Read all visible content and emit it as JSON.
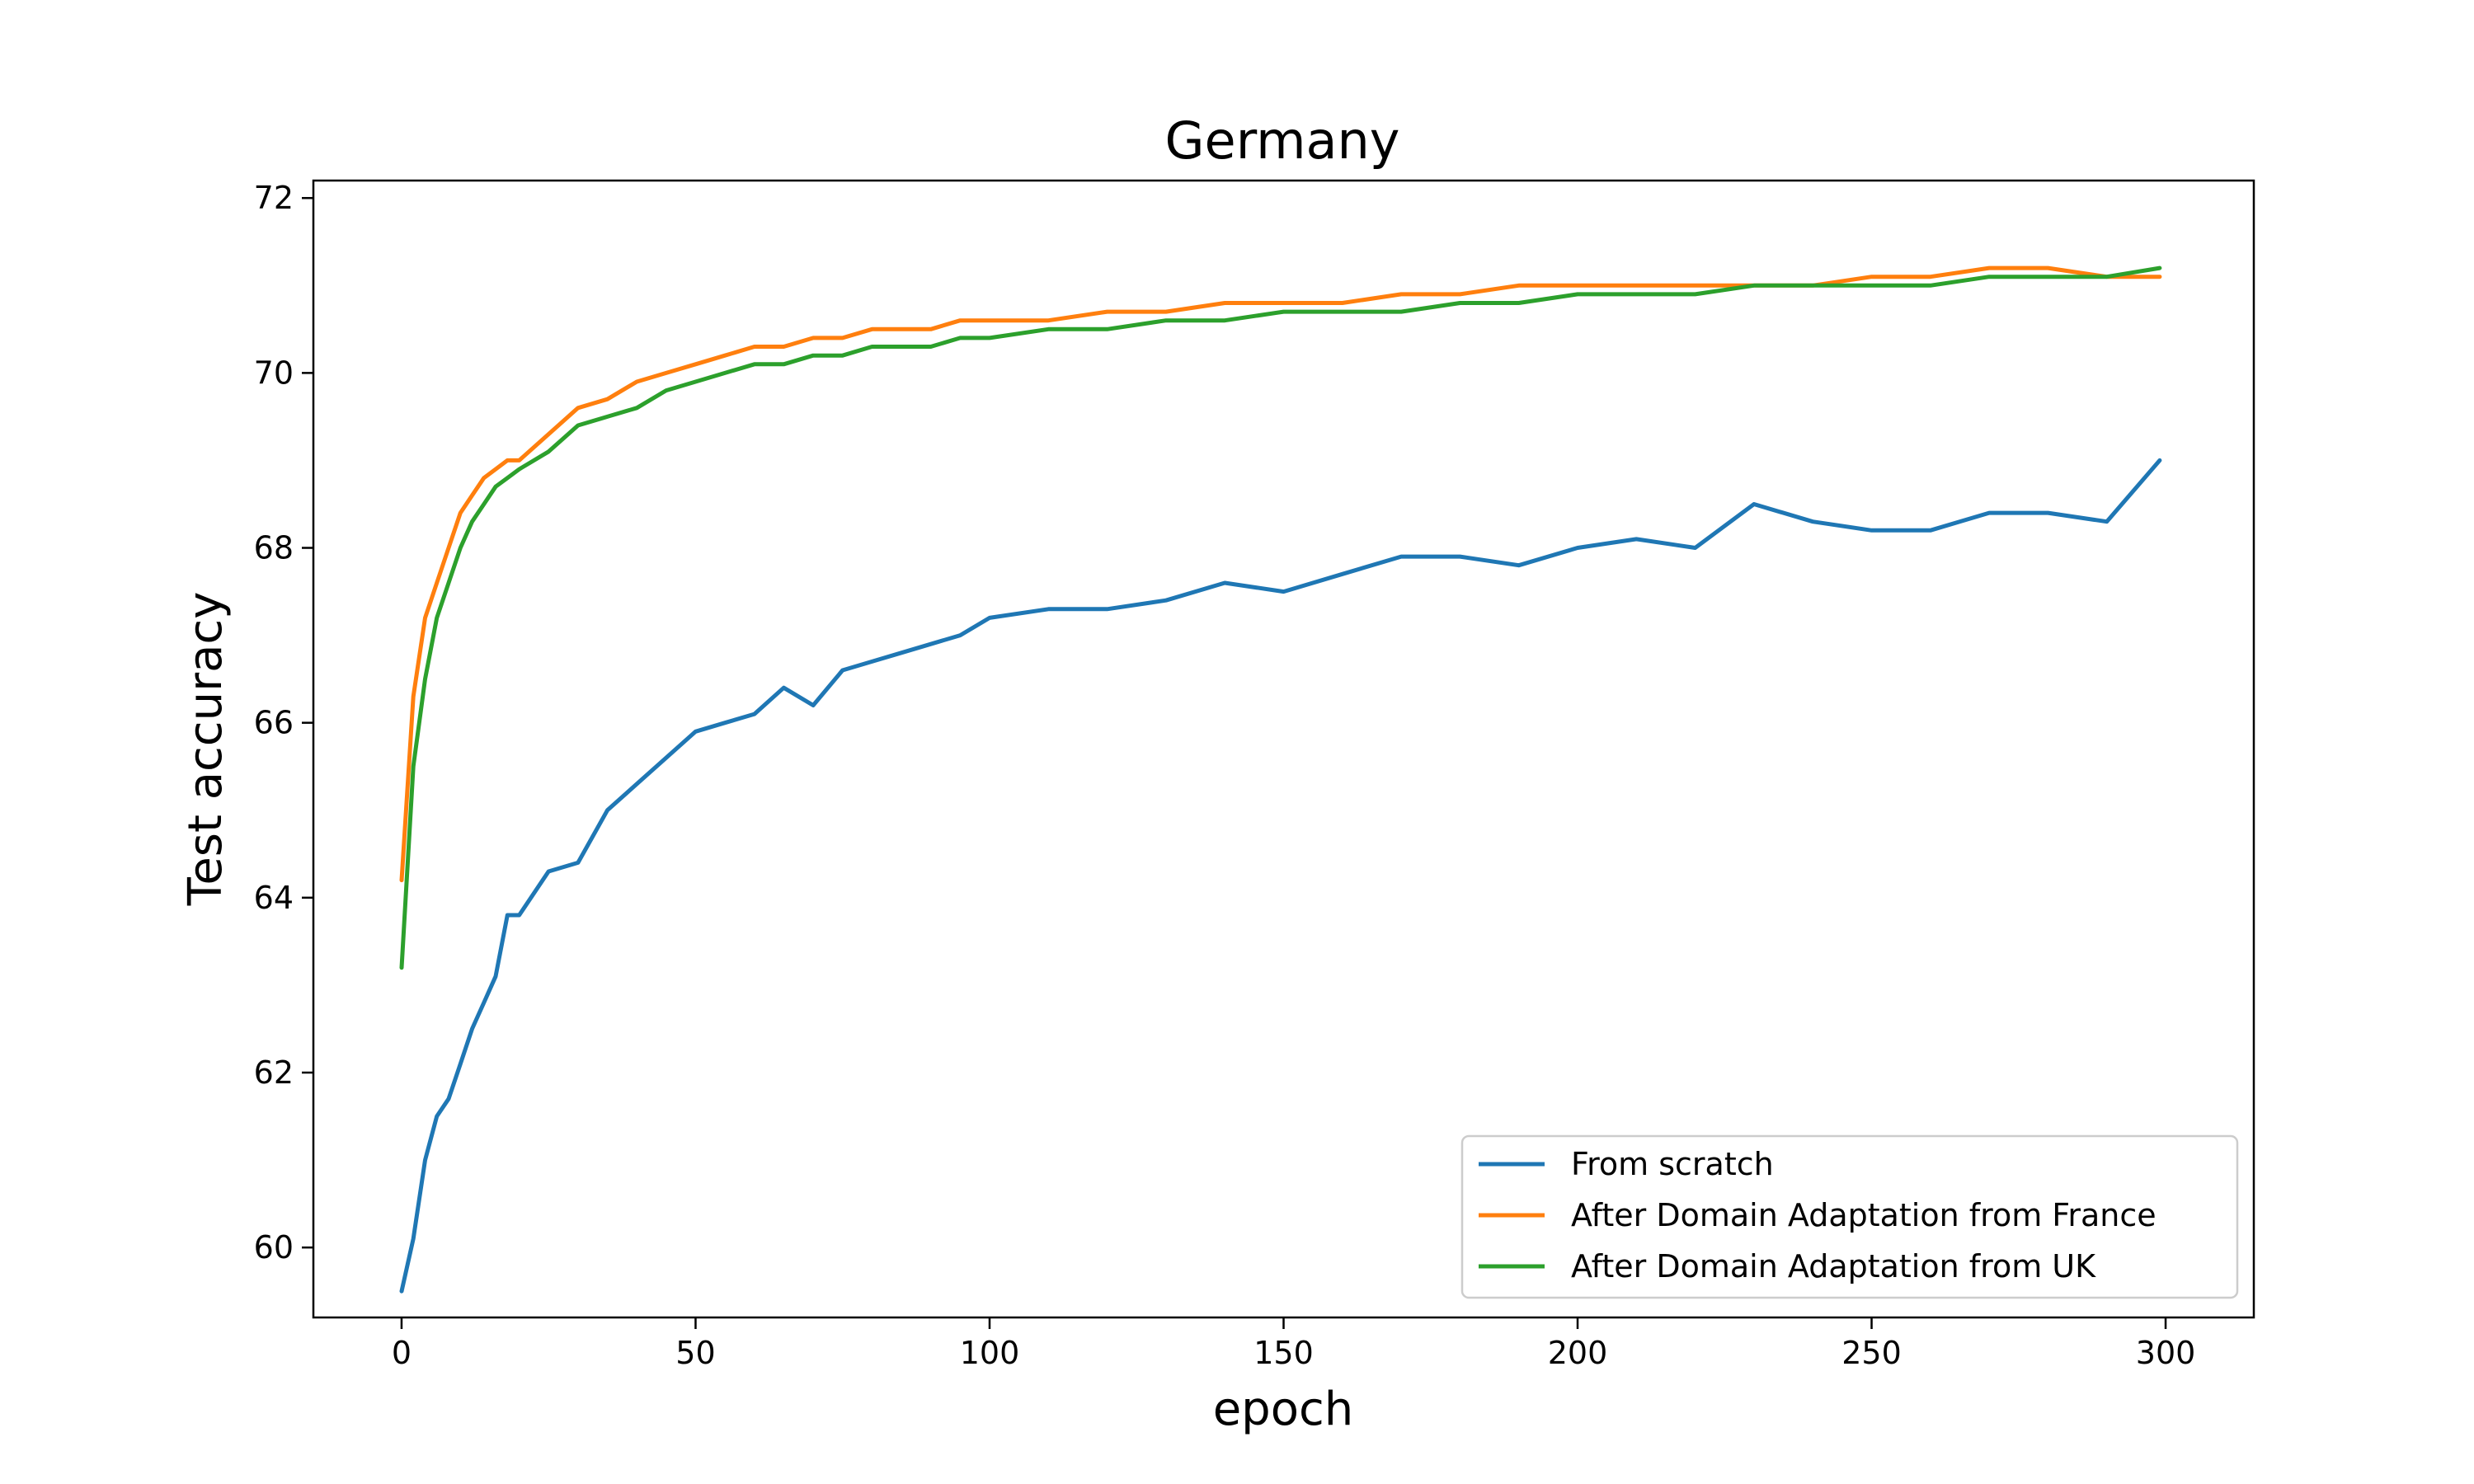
{
  "chart_data": {
    "type": "line",
    "title": "Germany",
    "xlabel": "epoch",
    "ylabel": "Test accuracy",
    "xlim": [
      -15,
      315
    ],
    "ylim": [
      59.2,
      72.2
    ],
    "xticks": [
      0,
      50,
      100,
      150,
      200,
      250,
      300
    ],
    "yticks": [
      60,
      62,
      64,
      66,
      68,
      70,
      72
    ],
    "grid": false,
    "legend_position": "lower-right",
    "series": [
      {
        "name": "From scratch",
        "color": "#1f77b4",
        "x": [
          0,
          2,
          4,
          6,
          8,
          10,
          12,
          14,
          16,
          18,
          20,
          25,
          30,
          35,
          40,
          45,
          50,
          55,
          60,
          65,
          70,
          75,
          80,
          85,
          90,
          95,
          100,
          110,
          120,
          130,
          140,
          150,
          160,
          170,
          180,
          190,
          200,
          210,
          220,
          230,
          240,
          250,
          260,
          270,
          280,
          290,
          299
        ],
        "y": [
          59.5,
          60.1,
          61.0,
          61.5,
          61.7,
          62.1,
          62.5,
          62.8,
          63.1,
          63.8,
          63.8,
          64.3,
          64.4,
          65.0,
          65.3,
          65.6,
          65.9,
          66.0,
          66.1,
          66.4,
          66.2,
          66.6,
          66.7,
          66.8,
          66.9,
          67.0,
          67.2,
          67.3,
          67.3,
          67.4,
          67.6,
          67.5,
          67.7,
          67.9,
          67.9,
          67.8,
          68.0,
          68.1,
          68.0,
          68.5,
          68.3,
          68.2,
          68.2,
          68.4,
          68.4,
          68.3,
          69.0
        ]
      },
      {
        "name": "After Domain Adaptation from France",
        "color": "#ff7f0e",
        "x": [
          0,
          2,
          4,
          6,
          8,
          10,
          12,
          14,
          16,
          18,
          20,
          25,
          30,
          35,
          40,
          45,
          50,
          55,
          60,
          65,
          70,
          75,
          80,
          85,
          90,
          95,
          100,
          110,
          120,
          130,
          140,
          150,
          160,
          170,
          180,
          190,
          200,
          210,
          220,
          230,
          240,
          250,
          260,
          270,
          280,
          290,
          299
        ],
        "y": [
          64.2,
          66.3,
          67.2,
          67.6,
          68.0,
          68.4,
          68.6,
          68.8,
          68.9,
          69.0,
          69.0,
          69.3,
          69.6,
          69.7,
          69.9,
          70.0,
          70.1,
          70.2,
          70.3,
          70.3,
          70.4,
          70.4,
          70.5,
          70.5,
          70.5,
          70.6,
          70.6,
          70.6,
          70.7,
          70.7,
          70.8,
          70.8,
          70.8,
          70.9,
          70.9,
          71.0,
          71.0,
          71.0,
          71.0,
          71.0,
          71.0,
          71.1,
          71.1,
          71.2,
          71.2,
          71.1,
          71.1
        ]
      },
      {
        "name": "After Domain Adaptation from UK",
        "color": "#2ca02c",
        "x": [
          0,
          2,
          4,
          6,
          8,
          10,
          12,
          14,
          16,
          18,
          20,
          25,
          30,
          35,
          40,
          45,
          50,
          55,
          60,
          65,
          70,
          75,
          80,
          85,
          90,
          95,
          100,
          110,
          120,
          130,
          140,
          150,
          160,
          170,
          180,
          190,
          200,
          210,
          220,
          230,
          240,
          250,
          260,
          270,
          280,
          290,
          299
        ],
        "y": [
          63.2,
          65.5,
          66.5,
          67.2,
          67.6,
          68.0,
          68.3,
          68.5,
          68.7,
          68.8,
          68.9,
          69.1,
          69.4,
          69.5,
          69.6,
          69.8,
          69.9,
          70.0,
          70.1,
          70.1,
          70.2,
          70.2,
          70.3,
          70.3,
          70.3,
          70.4,
          70.4,
          70.5,
          70.5,
          70.6,
          70.6,
          70.7,
          70.7,
          70.7,
          70.8,
          70.8,
          70.9,
          70.9,
          70.9,
          71.0,
          71.0,
          71.0,
          71.0,
          71.1,
          71.1,
          71.1,
          71.2
        ]
      }
    ]
  }
}
